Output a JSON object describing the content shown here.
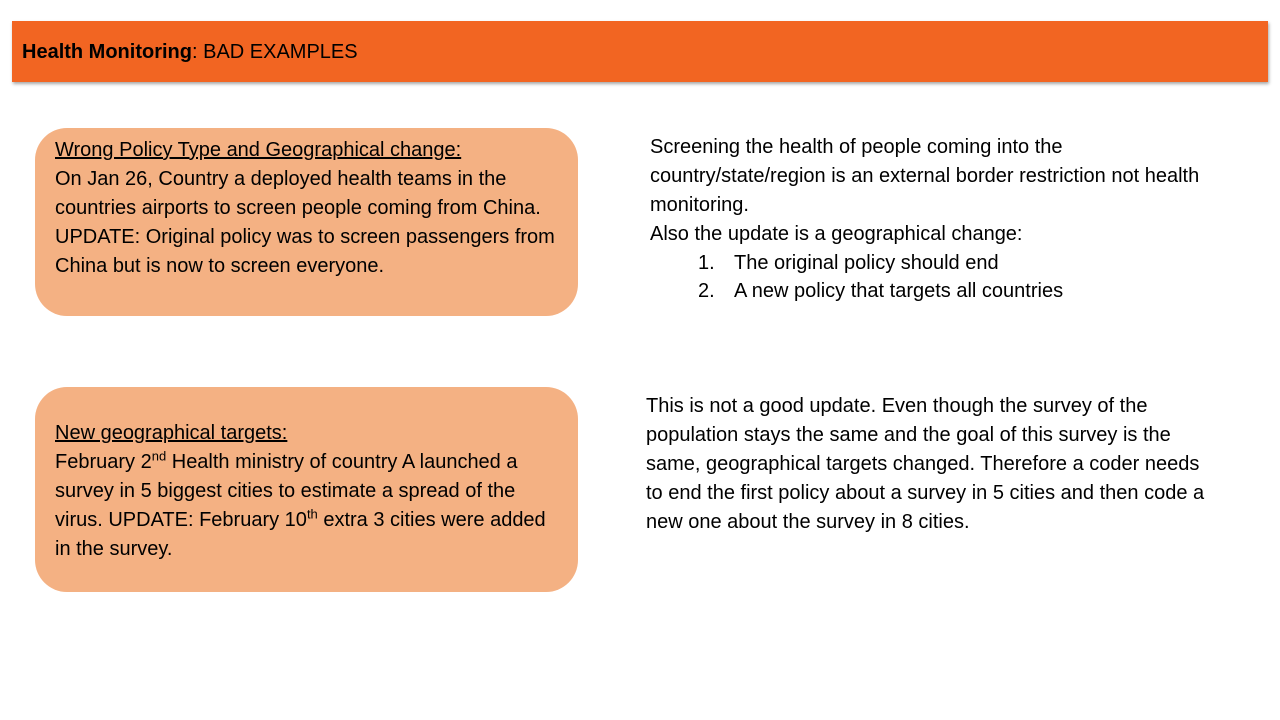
{
  "header": {
    "title_bold": "Health Monitoring",
    "title_rest": ": BAD EXAMPLES"
  },
  "example_1": {
    "heading": "Wrong Policy Type and Geographical change:",
    "body": "On Jan 26, Country a deployed health teams in the countries airports to screen people coming from China. UPDATE: Original policy was to screen passengers from China but is now to screen everyone.",
    "note": {
      "paragraph": "Screening the health of people coming into the country/state/region is an external border restriction not health monitoring.",
      "intro": "Also the update is a geographical change:",
      "items": [
        {
          "number": "1.",
          "text": "The original policy should end"
        },
        {
          "number": "2.",
          "text": "A new policy that targets all countries"
        }
      ]
    }
  },
  "example_2": {
    "heading": "New geographical targets:",
    "body_part1": "February 2",
    "sup1": "nd",
    "body_part2": " Health ministry of country A launched a survey in 5 biggest cities to estimate a spread of the virus. UPDATE: February 10",
    "sup2": "th",
    "body_part3": " extra 3 cities were added in the survey.",
    "note": "This is not a good update. Even though the survey of the population stays the same and the goal of this survey is the same, geographical targets changed. Therefore a coder needs to end the first policy about a survey in 5 cities and then code a new one about the survey in 8 cities."
  }
}
